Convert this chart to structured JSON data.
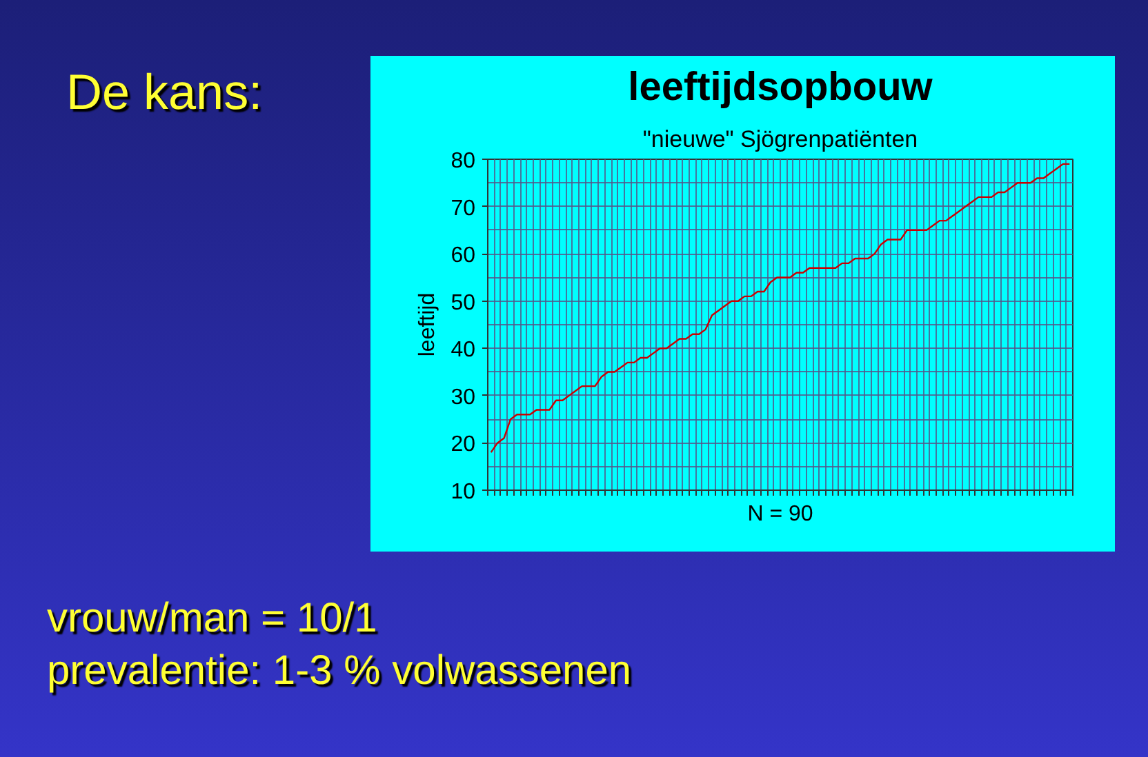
{
  "chart_data": {
    "type": "line",
    "title": "leeftijdsopbouw",
    "subtitle": "\"nieuwe\" Sjögrenpatiënten",
    "xlabel": "N = 90",
    "ylabel": "leeftijd",
    "annotations": [
      "De kans:",
      "vrouw/man = 10/1",
      "prevalentie: 1-3 % volwassenen"
    ],
    "categories": [
      null,
      null,
      null,
      null,
      null,
      null,
      null,
      null,
      null,
      null,
      null,
      null,
      null,
      null,
      null,
      null,
      null,
      null,
      null,
      null,
      null,
      null,
      null,
      null,
      null,
      null,
      null,
      null,
      null,
      null,
      null,
      null,
      null,
      null,
      null,
      null,
      null,
      null,
      null,
      null,
      null,
      null,
      null,
      null,
      null,
      null,
      null,
      null,
      null,
      null,
      null,
      null,
      null,
      null,
      null,
      null,
      null,
      null,
      null,
      null,
      null,
      null,
      null,
      null,
      null,
      null,
      null,
      null,
      null,
      null,
      null,
      null,
      null,
      null,
      null,
      null,
      null,
      null,
      null,
      null,
      null,
      null,
      null,
      null,
      null,
      null,
      null,
      null,
      null,
      null
    ],
    "series": [
      {
        "color": "#cc0000",
        "values": [
          18,
          20,
          21,
          25,
          26,
          26,
          26,
          27,
          27,
          27,
          29,
          29,
          30,
          31,
          32,
          32,
          32,
          34,
          35,
          35,
          36,
          37,
          37,
          38,
          38,
          39,
          40,
          40,
          41,
          42,
          42,
          43,
          43,
          44,
          47,
          48,
          49,
          50,
          50,
          51,
          51,
          52,
          52,
          54,
          55,
          55,
          55,
          56,
          56,
          57,
          57,
          57,
          57,
          57,
          58,
          58,
          59,
          59,
          59,
          60,
          62,
          63,
          63,
          63,
          65,
          65,
          65,
          65,
          66,
          67,
          67,
          68,
          69,
          70,
          71,
          72,
          72,
          72,
          73,
          73,
          74,
          75,
          75,
          75,
          76,
          76,
          77,
          78,
          79,
          79
        ]
      }
    ],
    "ylim": [
      10,
      80
    ],
    "yticks": [
      10,
      20,
      30,
      40,
      50,
      60,
      70,
      80
    ],
    "grid": true,
    "tick_labels": "y"
  }
}
